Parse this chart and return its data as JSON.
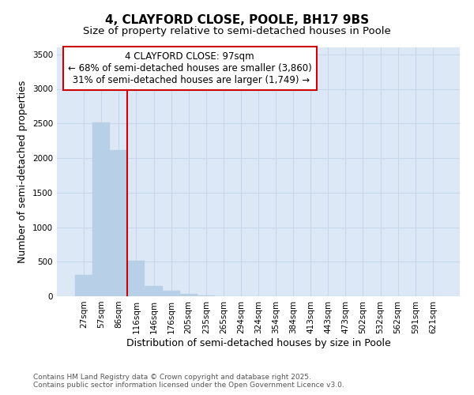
{
  "title": "4, CLAYFORD CLOSE, POOLE, BH17 9BS",
  "subtitle": "Size of property relative to semi-detached houses in Poole",
  "xlabel": "Distribution of semi-detached houses by size in Poole",
  "ylabel": "Number of semi-detached properties",
  "bar_labels": [
    "27sqm",
    "57sqm",
    "86sqm",
    "116sqm",
    "146sqm",
    "176sqm",
    "205sqm",
    "235sqm",
    "265sqm",
    "294sqm",
    "324sqm",
    "354sqm",
    "384sqm",
    "413sqm",
    "443sqm",
    "473sqm",
    "502sqm",
    "532sqm",
    "562sqm",
    "591sqm",
    "621sqm"
  ],
  "bar_values": [
    305,
    2520,
    2110,
    510,
    145,
    75,
    40,
    10,
    0,
    0,
    0,
    0,
    0,
    0,
    0,
    0,
    0,
    0,
    0,
    0,
    0
  ],
  "bar_color": "#b8cfe8",
  "bar_edge_color": "#b8cfe8",
  "vline_pos": 2.0,
  "annotation_text": "4 CLAYFORD CLOSE: 97sqm\n← 68% of semi-detached houses are smaller (3,860)\n 31% of semi-detached houses are larger (1,749) →",
  "annotation_box_color": "#ffffff",
  "annotation_box_edge": "#cc0000",
  "vline_color": "#cc0000",
  "ylim": [
    0,
    3600
  ],
  "yticks": [
    0,
    500,
    1000,
    1500,
    2000,
    2500,
    3000,
    3500
  ],
  "grid_color": "#c8d8ea",
  "background_color": "#dce8f5",
  "footer": "Contains HM Land Registry data © Crown copyright and database right 2025.\nContains public sector information licensed under the Open Government Licence v3.0.",
  "title_fontsize": 11,
  "subtitle_fontsize": 9.5,
  "axis_label_fontsize": 9,
  "tick_fontsize": 7.5,
  "annotation_fontsize": 8.5,
  "footer_fontsize": 6.5
}
